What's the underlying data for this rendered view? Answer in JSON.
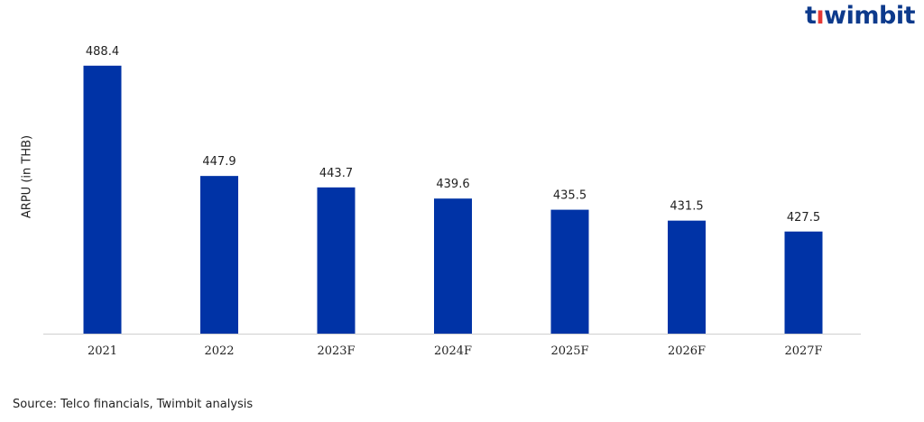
{
  "logo": {
    "text_before": "t",
    "text_dot_char": "ı",
    "text_after": "wimbit",
    "accent_color": "#e53935",
    "brand_color": "#0d3a8c"
  },
  "source": "Source: Telco financials, Twimbit analysis",
  "chart_data": {
    "type": "bar",
    "categories": [
      "2021",
      "2022",
      "2023F",
      "2024F",
      "2025F",
      "2026F",
      "2027F"
    ],
    "values": [
      488.4,
      447.9,
      443.7,
      439.6,
      435.5,
      431.5,
      427.5
    ],
    "value_labels": [
      "488.4",
      "447.9",
      "443.7",
      "439.6",
      "435.5",
      "431.5",
      "427.5"
    ],
    "title": "",
    "xlabel": "",
    "ylabel": "ARPU (in THB)",
    "ylim": [
      390,
      490
    ],
    "grid": false,
    "bar_color": "#0033a6"
  }
}
